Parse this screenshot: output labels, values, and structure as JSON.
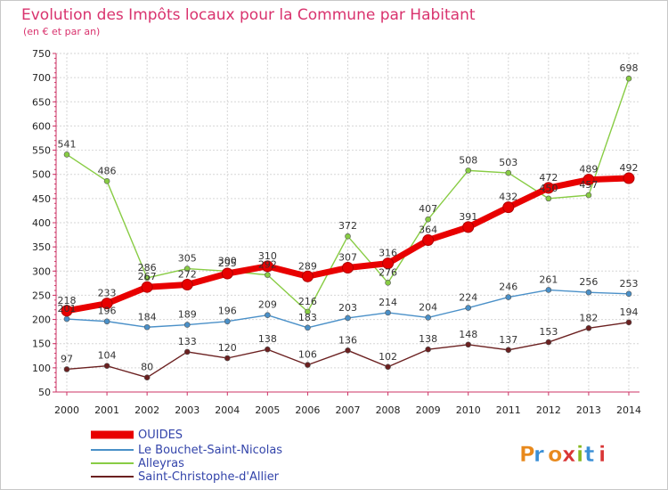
{
  "chart_data": {
    "type": "line",
    "title": "Evolution des Impôts locaux pour la Commune par Habitant",
    "subtitle": "(en € et par an)",
    "x": [
      "2000",
      "2001",
      "2002",
      "2003",
      "2004",
      "2005",
      "2006",
      "2007",
      "2008",
      "2009",
      "2010",
      "2011",
      "2012",
      "2013",
      "2014"
    ],
    "ylim": [
      50,
      750
    ],
    "yticks": [
      50,
      100,
      150,
      200,
      250,
      300,
      350,
      400,
      450,
      500,
      550,
      600,
      650,
      700,
      750
    ],
    "grid": true,
    "legend_position": "bottom-left",
    "series": [
      {
        "name": "OUIDES",
        "color": "#e80000",
        "values": [
          218,
          233,
          267,
          272,
          295,
          310,
          289,
          307,
          316,
          364,
          391,
          432,
          472,
          489,
          492
        ]
      },
      {
        "name": "Le Bouchet-Saint-Nicolas",
        "color": "#4a90c8",
        "values": [
          201,
          196,
          184,
          189,
          196,
          209,
          183,
          203,
          214,
          204,
          224,
          246,
          261,
          256,
          253
        ]
      },
      {
        "name": "Alleyras",
        "color": "#88cc44",
        "values": [
          541,
          486,
          286,
          305,
          300,
          292,
          216,
          372,
          276,
          407,
          508,
          503,
          450,
          457,
          698
        ]
      },
      {
        "name": "Saint-Christophe-d'Allier",
        "color": "#6b2020",
        "values": [
          97,
          104,
          80,
          133,
          120,
          138,
          106,
          136,
          102,
          138,
          148,
          137,
          153,
          182,
          194
        ]
      }
    ]
  },
  "brand": {
    "text": "Proxiti"
  }
}
